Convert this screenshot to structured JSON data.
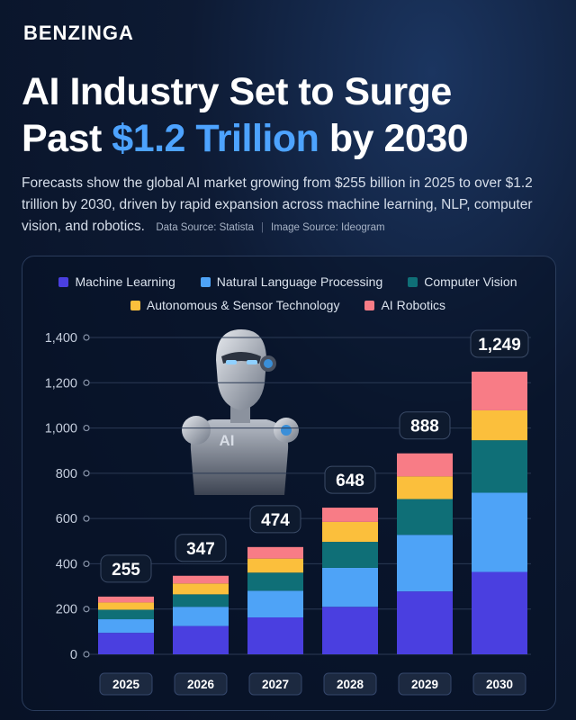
{
  "brand": "BENZINGA",
  "title_line1": "AI Industry Set to Surge",
  "title_line2_pre": "Past ",
  "title_line2_accent": "$1.2 Trillion",
  "title_line2_post": " by 2030",
  "subtitle": "Forecasts show the global AI market growing from $255 billion in 2025 to over $1.2 trillion by 2030, driven by rapid expansion across machine learning, NLP, computer vision, and robotics.",
  "data_source": "Data Source: Statista",
  "image_source": "Image Source: Ideogram",
  "illustration_label": "AI",
  "colors": {
    "machine_learning": "#4a3fe0",
    "nlp": "#4ea3f7",
    "computer_vision": "#0f6f77",
    "autonomous": "#fbbf3c",
    "robotics": "#f87c86",
    "accent": "#4da3ff"
  },
  "chart_data": {
    "type": "bar",
    "stacked": true,
    "categories": [
      "2025",
      "2026",
      "2027",
      "2028",
      "2029",
      "2030"
    ],
    "totals": [
      255,
      347,
      474,
      648,
      888,
      1249
    ],
    "series": [
      {
        "name": "Machine Learning",
        "color": "#4a3fe0",
        "values": [
          95,
          125,
          163,
          210,
          278,
          364
        ]
      },
      {
        "name": "Natural Language Processing",
        "color": "#4ea3f7",
        "values": [
          60,
          85,
          118,
          172,
          250,
          350
        ]
      },
      {
        "name": "Computer Vision",
        "color": "#0f6f77",
        "values": [
          42,
          55,
          80,
          115,
          158,
          232
        ]
      },
      {
        "name": "Autonomous & Sensor Technology",
        "color": "#fbbf3c",
        "values": [
          32,
          48,
          62,
          88,
          100,
          132
        ]
      },
      {
        "name": "AI Robotics",
        "color": "#f87c86",
        "values": [
          26,
          34,
          51,
          63,
          102,
          171
        ]
      }
    ],
    "ylim": [
      0,
      1400
    ],
    "yticks": [
      0,
      200,
      400,
      600,
      800,
      "1,000",
      "1,200",
      "1,400"
    ],
    "legend_position": "top-center"
  }
}
